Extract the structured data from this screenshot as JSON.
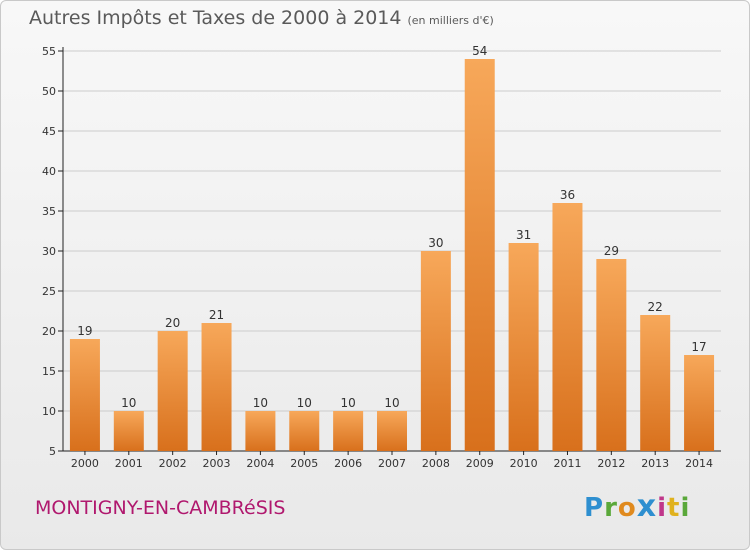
{
  "title": "Autres Impôts et Taxes de 2000 à 2014",
  "subtitle": "(en milliers d'€)",
  "commune": "MONTIGNY-EN-CAMBRéSIS",
  "logo_text": "Proxiti",
  "colors": {
    "bar_top": "#f7a85a",
    "bar_bottom": "#d8701c",
    "axis": "#222222",
    "grid": "#cccccc",
    "label": "#333333",
    "commune": "#b0186e"
  },
  "chart_data": {
    "type": "bar",
    "title": "Autres Impôts et Taxes de 2000 à 2014",
    "subtitle": "(en milliers d'€)",
    "categories": [
      "2000",
      "2001",
      "2002",
      "2003",
      "2004",
      "2005",
      "2006",
      "2007",
      "2008",
      "2009",
      "2010",
      "2011",
      "2012",
      "2013",
      "2014"
    ],
    "values": [
      19,
      10,
      20,
      21,
      10,
      10,
      10,
      10,
      30,
      54,
      31,
      36,
      29,
      22,
      17
    ],
    "ylim": [
      5,
      55
    ],
    "yticks": [
      5,
      10,
      15,
      20,
      25,
      30,
      35,
      40,
      45,
      50,
      55
    ],
    "grid": true,
    "data_labels": true
  }
}
